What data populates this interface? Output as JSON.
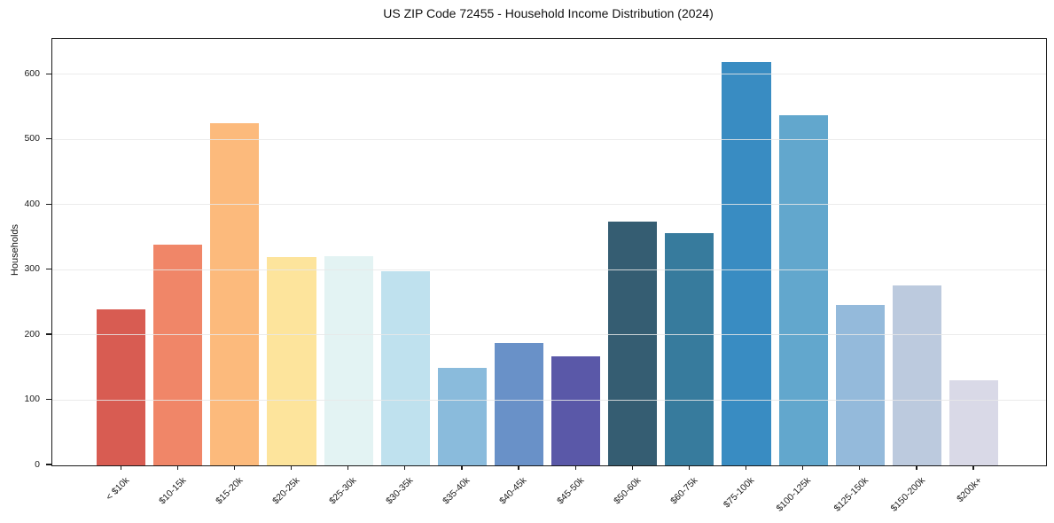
{
  "chart_data": {
    "type": "bar",
    "title": "US ZIP Code 72455 - Household Income Distribution (2024)",
    "xlabel": "",
    "ylabel": "Households",
    "categories": [
      "< $10k",
      "$10-15k",
      "$15-20k",
      "$20-25k",
      "$25-30k",
      "$30-35k",
      "$35-40k",
      "$40-45k",
      "$45-50k",
      "$50-60k",
      "$60-75k",
      "$75-100k",
      "$100-125k",
      "$125-150k",
      "$150-200k",
      "$200k+"
    ],
    "values": [
      240,
      339,
      525,
      320,
      322,
      298,
      150,
      188,
      168,
      374,
      357,
      620,
      538,
      247,
      277,
      131
    ],
    "bar_colors": [
      "#d85c52",
      "#f08668",
      "#fcba7c",
      "#fde49c",
      "#e3f3f3",
      "#bfe1ee",
      "#8abbdc",
      "#6991c8",
      "#5a58a8",
      "#355d72",
      "#377b9d",
      "#398cc2",
      "#62a7cd",
      "#94badb",
      "#bccade",
      "#d9d9e7"
    ],
    "yticks": [
      0,
      100,
      200,
      300,
      400,
      500,
      600
    ],
    "ylim": [
      0,
      655
    ],
    "grid": "horizontal-only",
    "legend": "none"
  }
}
